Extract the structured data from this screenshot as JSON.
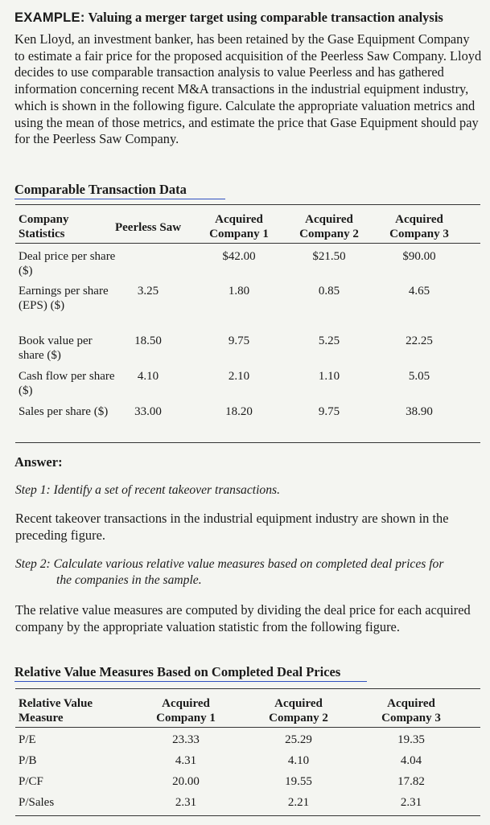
{
  "example": {
    "label": "EXAMPLE:",
    "title": "Valuing a merger target using comparable transaction analysis",
    "intro": "Ken Lloyd, an investment banker, has been retained by the Gase Equipment Company to estimate a fair price for the proposed acquisition of the Peerless Saw Company. Lloyd decides to use comparable transaction analysis to value Peerless and has gathered information concerning recent M&A transactions in the industrial equipment industry, which is shown in the following figure. Calculate the appropriate valuation metrics and using the mean of those metrics, and estimate the price that Gase Equipment should pay for the Peerless Saw Company."
  },
  "comparable": {
    "heading": "Comparable Transaction Data",
    "col0": "Company Statistics",
    "col1": "Peerless Saw",
    "col2": "Acquired Company 1",
    "col3": "Acquired Company 2",
    "col4": "Acquired Company 3",
    "rows": [
      {
        "label": "Deal price per share ($)",
        "v": [
          "",
          "$42.00",
          "$21.50",
          "$90.00"
        ]
      },
      {
        "label": "Earnings per share (EPS) ($)",
        "v": [
          "3.25",
          "1.80",
          "0.85",
          "4.65"
        ]
      },
      {
        "label": "Book value per share ($)",
        "v": [
          "18.50",
          "9.75",
          "5.25",
          "22.25"
        ]
      },
      {
        "label": "Cash flow per share ($)",
        "v": [
          "4.10",
          "2.10",
          "1.10",
          "5.05"
        ]
      },
      {
        "label": "Sales per share ($)",
        "v": [
          "33.00",
          "18.20",
          "9.75",
          "38.90"
        ]
      }
    ]
  },
  "answer": {
    "heading": "Answer:",
    "step1_label": "Step 1:",
    "step1_text": "Identify a set of recent takeover transactions.",
    "step1_body": "Recent takeover transactions in the industrial equipment industry are shown in the preceding figure.",
    "step2_label": "Step 2:",
    "step2_text_a": "Calculate various relative value measures based on completed deal prices for",
    "step2_text_b": "the companies in the sample.",
    "step2_body": "The relative value measures are computed by dividing the deal price for each acquired company by the appropriate valuation statistic from the following figure."
  },
  "relative": {
    "heading": "Relative Value Measures Based on Completed Deal Prices",
    "col0": "Relative Value Measure",
    "col1": "Acquired Company 1",
    "col2": "Acquired Company 2",
    "col3": "Acquired Company 3",
    "rows": [
      {
        "label": "P/E",
        "v": [
          "23.33",
          "25.29",
          "19.35"
        ]
      },
      {
        "label": "P/B",
        "v": [
          "4.31",
          "4.10",
          "4.04"
        ]
      },
      {
        "label": "P/CF",
        "v": [
          "20.00",
          "19.55",
          "17.82"
        ]
      },
      {
        "label": "P/Sales",
        "v": [
          "2.31",
          "2.21",
          "2.31"
        ]
      }
    ]
  },
  "colors": {
    "rule": "#333333",
    "accent_line": "#3050c0",
    "paper": "#f4f5f1"
  }
}
